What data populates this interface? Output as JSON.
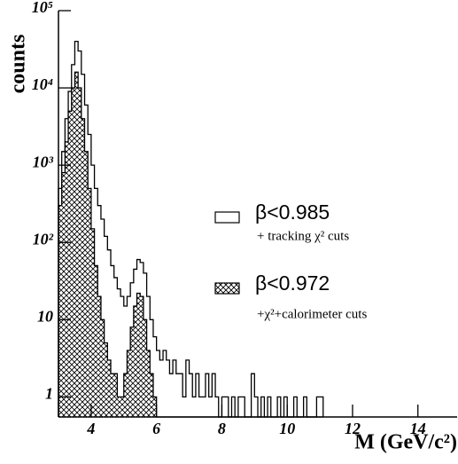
{
  "chart_data": {
    "type": "histogram",
    "x_label": "M (GeV/c²)",
    "y_label": "counts",
    "log_y": true,
    "xlim": [
      3,
      15.2
    ],
    "ylim": [
      0.55,
      100000
    ],
    "xticks": [
      4,
      6,
      8,
      10,
      12,
      14
    ],
    "yticks": [
      1,
      10,
      {
        "value": 100,
        "label": "10²"
      },
      {
        "value": 1000,
        "label": "10³"
      },
      {
        "value": 10000,
        "label": "10⁴"
      },
      {
        "value": 100000,
        "label": "10⁵"
      }
    ],
    "bins": [
      3.0,
      3.1,
      3.2,
      3.3,
      3.4,
      3.5,
      3.6,
      3.7,
      3.8,
      3.9,
      4.0,
      4.1,
      4.2,
      4.3,
      4.4,
      4.5,
      4.6,
      4.7,
      4.8,
      4.9,
      5.0,
      5.1,
      5.2,
      5.3,
      5.4,
      5.5,
      5.6,
      5.7,
      5.8,
      5.9,
      6.0,
      6.1,
      6.2,
      6.3,
      6.4,
      6.5,
      6.6,
      6.7,
      6.8,
      6.9,
      7.0,
      7.1,
      7.2,
      7.3,
      7.4,
      7.5,
      7.6,
      7.7,
      7.8,
      7.9,
      8.0,
      8.1,
      8.2,
      8.3,
      8.4,
      8.5,
      8.6,
      8.7,
      8.8,
      8.9,
      9.0,
      9.1,
      9.2,
      9.3,
      9.4,
      9.5,
      9.6,
      9.7,
      9.8,
      9.9,
      10.0,
      10.1,
      10.2,
      10.3,
      10.4,
      10.5,
      10.6,
      10.7,
      10.8,
      10.9,
      11.0,
      11.1
    ],
    "series": [
      {
        "name": "β<0.985",
        "note": "+ tracking χ² cuts",
        "style": "open",
        "values": [
          500,
          1500,
          4000,
          9000,
          20000,
          40000,
          30000,
          15000,
          6000,
          2500,
          1000,
          500,
          300,
          200,
          120,
          80,
          50,
          35,
          25,
          20,
          15,
          20,
          30,
          45,
          60,
          55,
          40,
          20,
          10,
          6,
          4,
          3,
          4,
          3,
          2,
          3,
          2,
          2,
          1,
          3,
          2,
          1,
          2,
          1,
          1,
          2,
          1,
          2,
          1,
          0,
          1,
          1,
          0,
          1,
          0,
          1,
          1,
          0,
          0,
          2,
          1,
          0,
          1,
          0,
          1,
          0,
          0,
          1,
          0,
          1,
          0,
          0,
          1,
          0,
          0,
          1,
          0,
          0,
          0,
          1,
          1
        ]
      },
      {
        "name": "β<0.972",
        "note": "+χ²+calorimeter cuts",
        "style": "hatched",
        "values": [
          300,
          800,
          2000,
          5000,
          10000,
          16000,
          10000,
          4000,
          1500,
          500,
          150,
          50,
          20,
          10,
          5,
          3,
          2,
          2,
          1,
          1,
          2,
          4,
          8,
          15,
          22,
          20,
          10,
          4,
          2,
          1,
          0,
          0,
          0,
          0,
          0,
          0,
          0,
          0,
          0,
          0,
          0,
          0,
          0,
          0,
          0,
          0,
          0,
          0,
          0,
          0,
          0,
          0,
          0,
          0,
          0,
          0,
          0,
          0,
          0,
          0,
          0,
          0,
          0,
          0,
          0,
          0,
          0,
          0,
          0,
          0,
          0,
          0,
          0,
          0,
          0,
          0,
          0,
          0,
          0,
          0,
          0
        ]
      }
    ]
  }
}
